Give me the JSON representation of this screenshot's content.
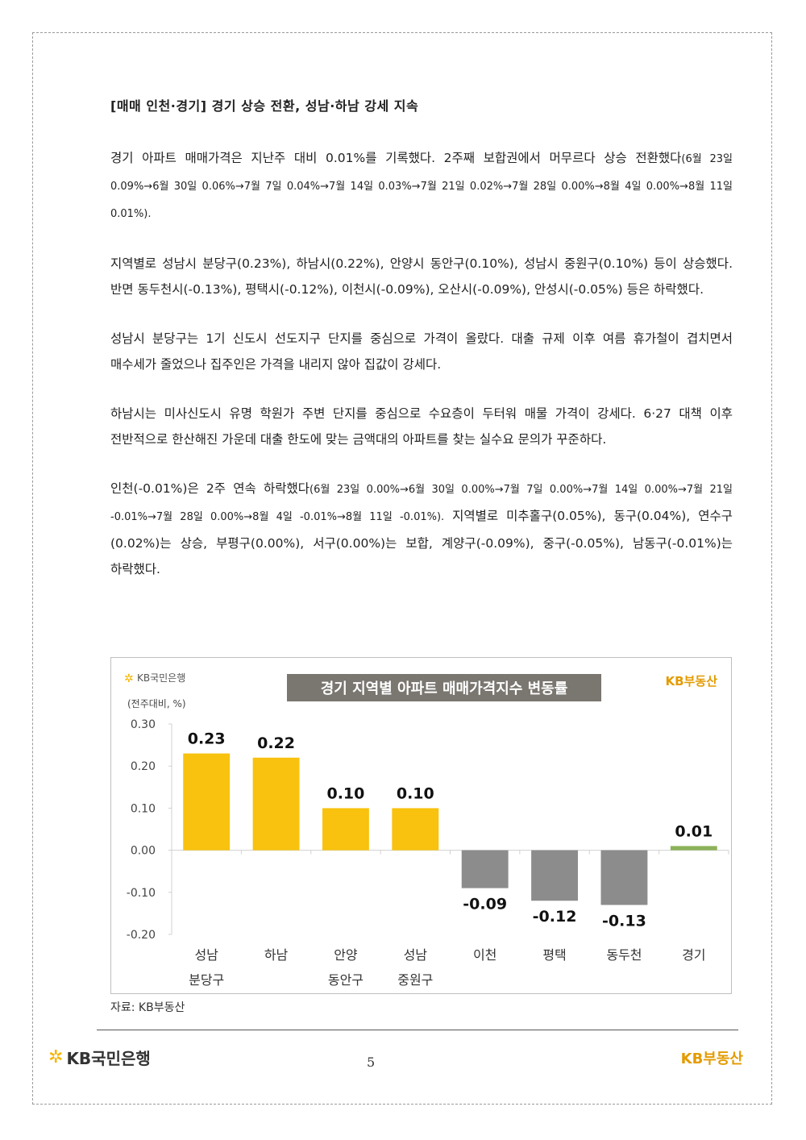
{
  "section_title": "[매매 인천·경기] 경기 상승 전환, 성남·하남 강세 지속",
  "paragraphs": [
    {
      "lead": "경기 아파트 매매가격은 지난주 대비 0.01%를 기록했다. 2주째 보합권에서 머무르다 상승 전환했다",
      "small": "(6월 23일 0.09%→6월 30일 0.06%→7월 7일 0.04%→7월 14일 0.03%→7월 21일 0.02%→7월 28일 0.00%→8월 4일 0.00%→8월 11일 0.01%).",
      "tail": ""
    },
    {
      "lead": "지역별로 성남시 분당구(0.23%), 하남시(0.22%), 안양시 동안구(0.10%), 성남시 중원구(0.10%) 등이 상승했다. 반면 동두천시(-0.13%), 평택시(-0.12%), 이천시(-0.09%), 오산시(-0.09%), 안성시(-0.05%) 등은 하락했다.",
      "small": "",
      "tail": ""
    },
    {
      "lead": "성남시 분당구는 1기 신도시 선도지구 단지를 중심으로 가격이 올랐다. 대출 규제 이후 여름 휴가철이 겹치면서 매수세가 줄었으나 집주인은 가격을 내리지 않아 집값이 강세다.",
      "small": "",
      "tail": ""
    },
    {
      "lead": "하남시는 미사신도시 유명 학원가 주변 단지를 중심으로 수요층이 두터워 매물 가격이 강세다. 6·27 대책 이후 전반적으로 한산해진 가운데 대출 한도에 맞는 금액대의 아파트를 찾는 실수요 문의가 꾸준하다.",
      "small": "",
      "tail": ""
    },
    {
      "lead": "인천(-0.01%)은 2주 연속 하락했다",
      "small": "(6월 23일 0.00%→6월 30일 0.00%→7월 7일 0.00%→7월 14일 0.00%→7월 21일 -0.01%→7월 28일 0.00%→8월 4일 -0.01%→8월 11일 -0.01%).",
      "tail": " 지역별로 미추홀구(0.05%), 동구(0.04%), 연수구(0.02%)는 상승, 부평구(0.00%), 서구(0.00%)는 보합, 계양구(-0.09%), 중구(-0.05%), 남동구(-0.01%)는 하락했다."
    }
  ],
  "chart_logo_left": "KB국민은행",
  "chart_logo_right": "KB부동산",
  "chart_data": {
    "type": "bar",
    "title": "경기 지역별 아파트 매매가격지수 변동률",
    "ylabel": "(전주대비, %)",
    "xlabel": "",
    "ylim": [
      -0.2,
      0.3
    ],
    "yticks": [
      "0.30",
      "0.20",
      "0.10",
      "0.00",
      "-0.10",
      "-0.20"
    ],
    "grid": false,
    "categories": [
      [
        "성남",
        "분당구"
      ],
      [
        "하남"
      ],
      [
        "안양",
        "동안구"
      ],
      [
        "성남",
        "중원구"
      ],
      [
        "이천"
      ],
      [
        "평택"
      ],
      [
        "동두천"
      ],
      [
        "경기"
      ]
    ],
    "values": [
      0.23,
      0.22,
      0.1,
      0.1,
      -0.09,
      -0.12,
      -0.13,
      0.01
    ],
    "value_labels": [
      "0.23",
      "0.22",
      "0.10",
      "0.10",
      "-0.09",
      "-0.12",
      "-0.13",
      "0.01"
    ],
    "colors": {
      "positive": "#f8c20e",
      "negative": "#8c8c8c",
      "total": "#8db25a",
      "title_bg": "#7a7670",
      "brand": "#e39b00"
    }
  },
  "source": "자료: KB부동산",
  "footer": {
    "logo_left": "KB국민은행",
    "page_number": "5",
    "logo_right": "KB부동산"
  }
}
